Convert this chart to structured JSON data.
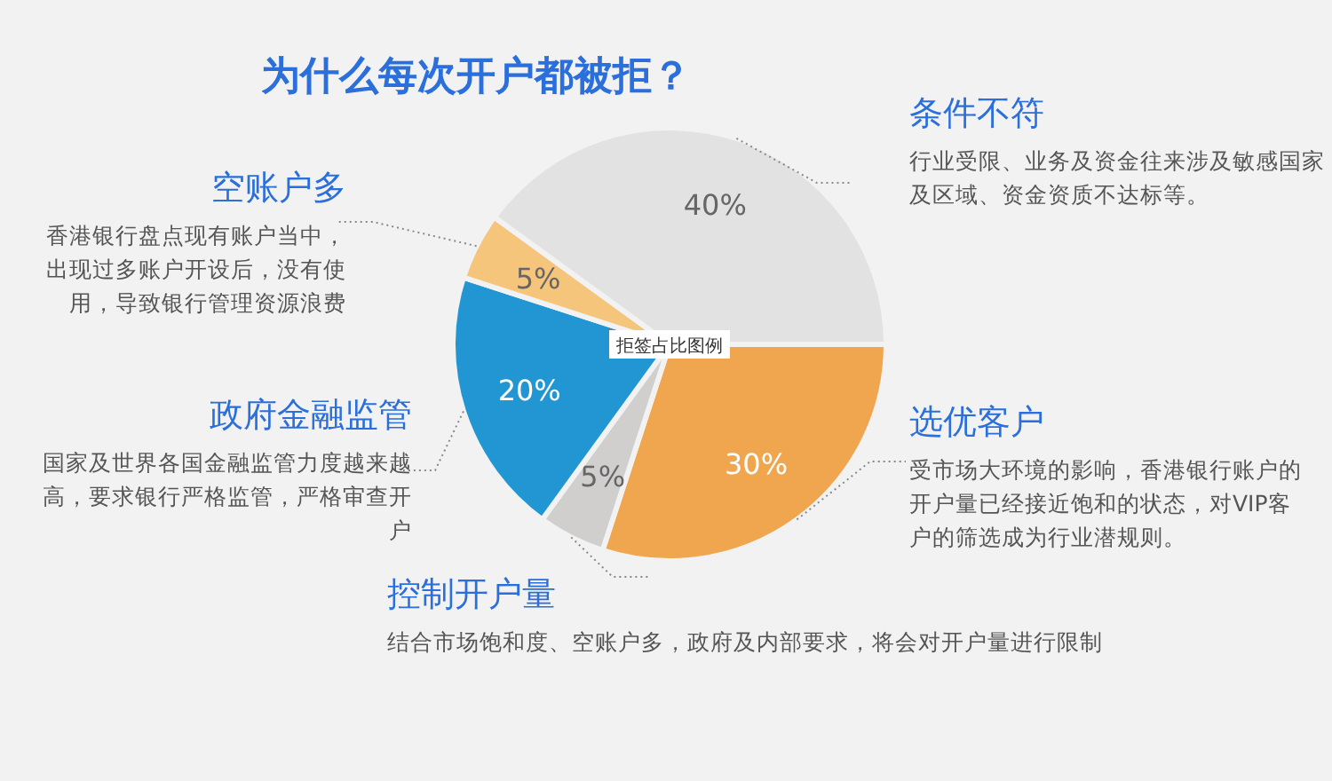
{
  "chart_data": {
    "type": "pie",
    "title": "为什么每次开户都被拒？",
    "categories": [
      "选优客户",
      "控制开户量",
      "政府金融监管",
      "空账户多",
      "条件不符"
    ],
    "values": [
      30,
      5,
      20,
      5,
      40
    ],
    "colors": [
      "#f0a64e",
      "#d1cece",
      "#2196d3",
      "#f5c57c",
      "#e2e2e2"
    ],
    "value_labels": [
      "30%",
      "5%",
      "20%",
      "5%",
      "40%"
    ],
    "annotations": [
      "受市场大环境的影响，香港银行账户的开户量已经接近饱和的状态，对VIP客户的筛选成为行业潜规则。",
      "结合市场饱和度、空账户多，政府及内部要求，将会对开户量进行限制",
      "国家及世界各国金融监管力度越来越高，要求银行严格监管，严格审查开户",
      "香港银行盘点现有账户当中，出现过多账户开设后，没有使用，导致银行管理资源浪费",
      "行业受限、业务及资金往来涉及敏感国家及区域、资金资质不达标等。",
      "拒签占比图例"
    ]
  }
}
